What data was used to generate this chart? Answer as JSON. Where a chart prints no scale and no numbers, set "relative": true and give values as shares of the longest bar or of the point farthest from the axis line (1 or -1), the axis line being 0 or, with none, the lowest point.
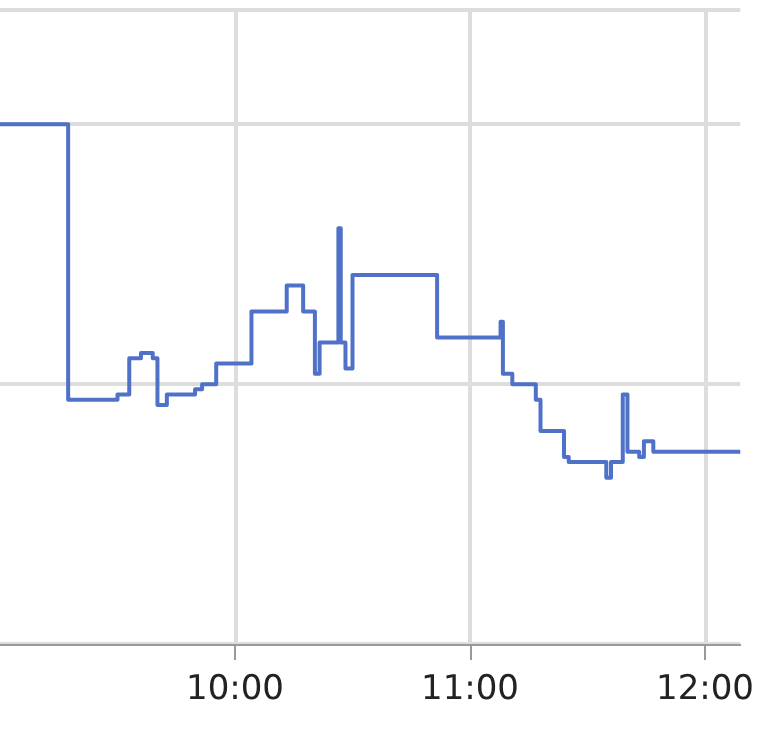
{
  "chart_data": {
    "type": "step",
    "relative": true,
    "grid": true,
    "tick_labels": "x",
    "marker": "none",
    "xlim": [
      9.0,
      12.15
    ],
    "xticks": [
      {
        "value": 10,
        "label": "10:00"
      },
      {
        "value": 11,
        "label": "11:00"
      },
      {
        "value": 12,
        "label": "12:00"
      }
    ],
    "series": [
      {
        "color": "#4f72c8",
        "x": [
          9.0,
          9.29,
          9.5,
          9.55,
          9.6,
          9.65,
          9.67,
          9.71,
          9.83,
          9.86,
          9.92,
          10.07,
          10.22,
          10.29,
          10.34,
          10.36,
          10.44,
          10.45,
          10.47,
          10.5,
          10.86,
          11.13,
          11.14,
          11.18,
          11.28,
          11.3,
          11.4,
          11.42,
          11.58,
          11.6,
          11.65,
          11.67,
          11.72,
          11.74,
          11.78,
          12.15
        ],
        "values": [
          1.0,
          0.47,
          0.48,
          0.55,
          0.56,
          0.55,
          0.46,
          0.48,
          0.49,
          0.5,
          0.54,
          0.64,
          0.69,
          0.64,
          0.52,
          0.58,
          0.8,
          0.58,
          0.53,
          0.71,
          0.59,
          0.62,
          0.52,
          0.5,
          0.47,
          0.41,
          0.36,
          0.35,
          0.32,
          0.35,
          0.48,
          0.37,
          0.36,
          0.39,
          0.37,
          0.37
        ]
      }
    ]
  }
}
